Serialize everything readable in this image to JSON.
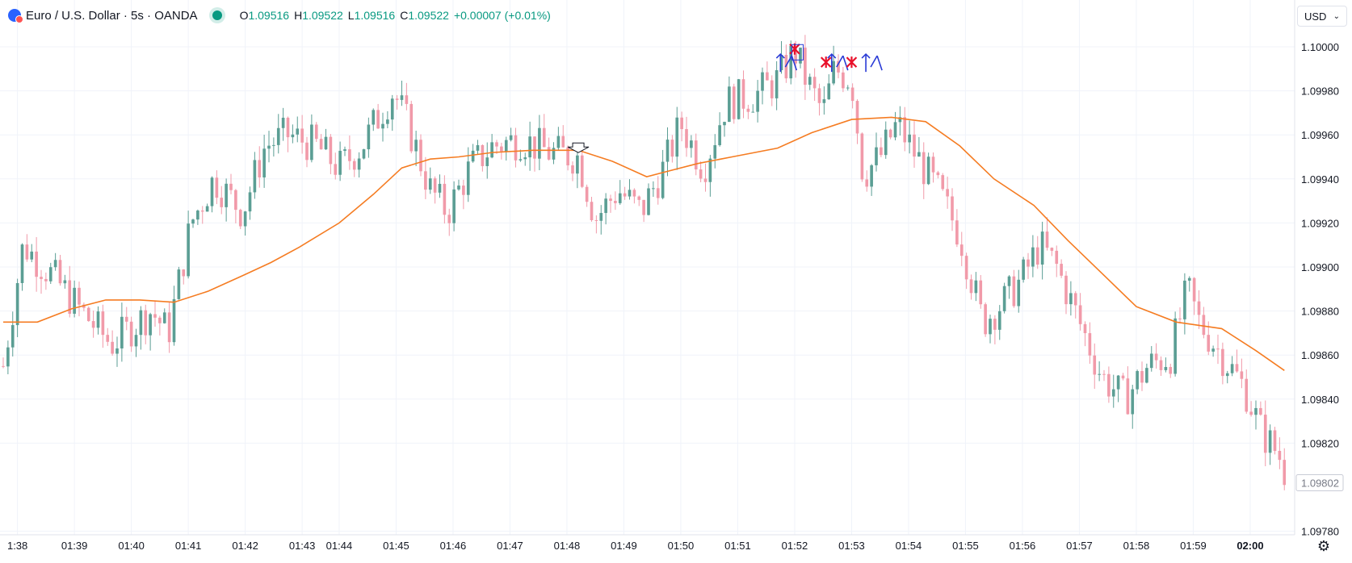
{
  "header": {
    "symbol": "Euro / U.S. Dollar · 5s · OANDA",
    "ohlc": [
      {
        "label": "O",
        "value": "1.09516"
      },
      {
        "label": "H",
        "value": "1.09522"
      },
      {
        "label": "L",
        "value": "1.09516"
      },
      {
        "label": "C",
        "value": "1.09522"
      }
    ],
    "change": "+0.00007 (+0.01%)"
  },
  "currency": {
    "label": "USD"
  },
  "icons": {
    "logo": "flag-icon",
    "status": "market-open-dot-icon",
    "settings": "gear-icon",
    "dropdown": "chevron-down-icon"
  },
  "colors": {
    "up": "#5b9e94",
    "down": "#f19aa9",
    "ma": "#f57c22",
    "price_label": "#787b86",
    "markers_up": "#2a3bd6",
    "markers_x": "#e8102a"
  },
  "chart_data": {
    "type": "candlestick",
    "title": "",
    "xlabel": "",
    "ylabel": "",
    "x_ticks": [
      "1:38",
      "01:39",
      "01:40",
      "01:41",
      "01:42",
      "01:43",
      "01:44",
      "01:45",
      "01:46",
      "01:47",
      "01:48",
      "01:49",
      "01:50",
      "01:51",
      "01:52",
      "01:53",
      "01:54",
      "01:55",
      "01:56",
      "01:57",
      "01:58",
      "01:59",
      "02:00"
    ],
    "x_tick_pos": [
      0.25,
      1.25,
      2.25,
      3.25,
      4.25,
      5.25,
      5.9,
      6.9,
      7.9,
      8.9,
      9.9,
      10.9,
      11.9,
      12.9,
      13.9,
      14.9,
      15.9,
      16.9,
      17.9,
      18.9,
      19.9,
      20.9,
      21.9
    ],
    "y_ticks": [
      "1.10000",
      "1.09980",
      "1.09960",
      "1.09940",
      "1.09920",
      "1.09900",
      "1.09880",
      "1.09860",
      "1.09840",
      "1.09820",
      "1.09780"
    ],
    "ylim": [
      1.09775,
      1.1001
    ],
    "last_price": "1.09802",
    "xlim": [
      0,
      22.6
    ],
    "ma_points": [
      [
        0,
        1.09875
      ],
      [
        0.6,
        1.09875
      ],
      [
        1.2,
        1.09881
      ],
      [
        1.8,
        1.09885
      ],
      [
        2.4,
        1.09885
      ],
      [
        3.0,
        1.09884
      ],
      [
        3.6,
        1.09889
      ],
      [
        4.2,
        1.09896
      ],
      [
        4.7,
        1.09902
      ],
      [
        5.2,
        1.09909
      ],
      [
        5.9,
        1.0992
      ],
      [
        6.5,
        1.09933
      ],
      [
        7.0,
        1.09945
      ],
      [
        7.5,
        1.09949
      ],
      [
        8.0,
        1.0995
      ],
      [
        8.6,
        1.09952
      ],
      [
        9.3,
        1.09953
      ],
      [
        10.1,
        1.09953
      ],
      [
        10.7,
        1.09948
      ],
      [
        11.3,
        1.09941
      ],
      [
        11.6,
        1.09943
      ],
      [
        12.2,
        1.09947
      ],
      [
        12.8,
        1.0995
      ],
      [
        13.6,
        1.09954
      ],
      [
        14.2,
        1.09961
      ],
      [
        14.9,
        1.09967
      ],
      [
        15.6,
        1.09968
      ],
      [
        16.2,
        1.09966
      ],
      [
        16.8,
        1.09955
      ],
      [
        17.4,
        1.0994
      ],
      [
        18.1,
        1.09928
      ],
      [
        18.7,
        1.09912
      ],
      [
        19.3,
        1.09897
      ],
      [
        19.9,
        1.09882
      ],
      [
        20.6,
        1.09875
      ],
      [
        21.4,
        1.09872
      ],
      [
        22.0,
        1.09862
      ],
      [
        22.5,
        1.09853
      ]
    ],
    "anchors": [
      [
        0,
        1.09855
      ],
      [
        0.35,
        1.0991
      ],
      [
        0.9,
        1.09895
      ],
      [
        1.3,
        1.09882
      ],
      [
        1.9,
        1.09865
      ],
      [
        2.6,
        1.0988
      ],
      [
        2.9,
        1.0987
      ],
      [
        3.3,
        1.0992
      ],
      [
        3.7,
        1.0994
      ],
      [
        4.2,
        1.09925
      ],
      [
        4.6,
        1.09955
      ],
      [
        5.0,
        1.0996
      ],
      [
        5.5,
        1.09955
      ],
      [
        5.9,
        1.09945
      ],
      [
        6.3,
        1.09955
      ],
      [
        6.85,
        1.0998
      ],
      [
        7.1,
        1.09965
      ],
      [
        7.5,
        1.09935
      ],
      [
        7.8,
        1.09925
      ],
      [
        8.2,
        1.09945
      ],
      [
        8.6,
        1.09955
      ],
      [
        9.1,
        1.09958
      ],
      [
        9.6,
        1.09952
      ],
      [
        10.1,
        1.0995
      ],
      [
        10.4,
        1.09922
      ],
      [
        10.8,
        1.09935
      ],
      [
        11.2,
        1.09925
      ],
      [
        11.6,
        1.09945
      ],
      [
        11.9,
        1.09965
      ],
      [
        12.3,
        1.09945
      ],
      [
        12.7,
        1.09975
      ],
      [
        13.2,
        1.09978
      ],
      [
        13.6,
        1.09985
      ],
      [
        13.9,
        1.09998
      ],
      [
        14.1,
        1.09985
      ],
      [
        14.4,
        1.0997
      ],
      [
        14.6,
        1.0999
      ],
      [
        14.9,
        1.09985
      ],
      [
        15.1,
        1.09942
      ],
      [
        15.4,
        1.0995
      ],
      [
        15.7,
        1.09965
      ],
      [
        16.0,
        1.09952
      ],
      [
        16.4,
        1.09935
      ],
      [
        16.8,
        1.09915
      ],
      [
        17.2,
        1.09875
      ],
      [
        17.6,
        1.09885
      ],
      [
        17.9,
        1.09895
      ],
      [
        18.2,
        1.0991
      ],
      [
        18.5,
        1.099
      ],
      [
        18.9,
        1.09875
      ],
      [
        19.3,
        1.0985
      ],
      [
        19.7,
        1.0984
      ],
      [
        20.1,
        1.09855
      ],
      [
        20.5,
        1.0986
      ],
      [
        20.8,
        1.0989
      ],
      [
        21.0,
        1.09875
      ],
      [
        21.4,
        1.0986
      ],
      [
        21.8,
        1.09845
      ],
      [
        22.1,
        1.09825
      ],
      [
        22.4,
        1.09815
      ],
      [
        22.6,
        1.098
      ]
    ],
    "markers": {
      "arrows": [
        13.65,
        14.55,
        15.15
      ],
      "crosses": [
        [
          13.9,
          1.09999
        ],
        [
          14.45,
          1.09993
        ],
        [
          14.9,
          1.09993
        ]
      ],
      "down_arrow": 10.1,
      "box": [
        13.85,
        14.05,
        1.09994,
        1.10001
      ]
    }
  }
}
